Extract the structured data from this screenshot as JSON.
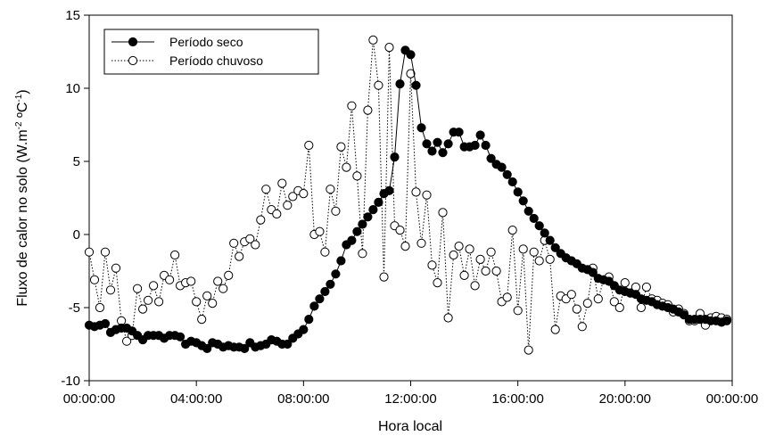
{
  "chart_data": {
    "type": "line",
    "title": "",
    "xlabel": "Hora local",
    "ylabel_main": "Fluxo de calor no solo (W.m",
    "ylabel_sup1": "-2",
    "ylabel_mid": " ºC",
    "ylabel_sup2": "-1",
    "ylabel_end": ")",
    "xlim": [
      0,
      24
    ],
    "ylim": [
      -10,
      15
    ],
    "xticks": [
      0,
      4,
      8,
      12,
      16,
      20,
      24
    ],
    "xtick_labels": [
      "00:00:00",
      "04:00:00",
      "08:00:00",
      "12:00:00",
      "16:00:00",
      "20:00:00",
      "00:00:00"
    ],
    "yticks": [
      -10,
      -5,
      0,
      5,
      10,
      15
    ],
    "ytick_labels": [
      "-10",
      "-5",
      "0",
      "5",
      "10",
      "15"
    ],
    "grid": false,
    "legend_position": "top-left",
    "series": [
      {
        "name": "Período seco",
        "marker": "filled-circle",
        "line": "solid",
        "color": "#000000",
        "x": [
          0.0,
          0.2,
          0.4,
          0.6,
          0.8,
          1.0,
          1.2,
          1.4,
          1.6,
          1.8,
          2.0,
          2.2,
          2.4,
          2.6,
          2.8,
          3.0,
          3.2,
          3.4,
          3.6,
          3.8,
          4.0,
          4.2,
          4.4,
          4.6,
          4.8,
          5.0,
          5.2,
          5.4,
          5.6,
          5.8,
          6.0,
          6.2,
          6.4,
          6.6,
          6.8,
          7.0,
          7.2,
          7.4,
          7.6,
          7.8,
          8.0,
          8.2,
          8.4,
          8.6,
          8.8,
          9.0,
          9.2,
          9.4,
          9.6,
          9.8,
          10.0,
          10.2,
          10.4,
          10.6,
          10.8,
          11.0,
          11.2,
          11.4,
          11.6,
          11.8,
          12.0,
          12.2,
          12.4,
          12.6,
          12.8,
          13.0,
          13.2,
          13.4,
          13.6,
          13.8,
          14.0,
          14.2,
          14.4,
          14.6,
          14.8,
          15.0,
          15.2,
          15.4,
          15.6,
          15.8,
          16.0,
          16.2,
          16.4,
          16.6,
          16.8,
          17.0,
          17.2,
          17.4,
          17.6,
          17.8,
          18.0,
          18.2,
          18.4,
          18.6,
          18.8,
          19.0,
          19.2,
          19.4,
          19.6,
          19.8,
          20.0,
          20.2,
          20.4,
          20.6,
          20.8,
          21.0,
          21.2,
          21.4,
          21.6,
          21.8,
          22.0,
          22.2,
          22.4,
          22.6,
          22.8,
          23.0,
          23.2,
          23.4,
          23.6,
          23.8
        ],
        "y": [
          -6.2,
          -6.3,
          -6.2,
          -6.1,
          -6.7,
          -6.5,
          -6.4,
          -6.4,
          -6.6,
          -6.9,
          -7.2,
          -6.9,
          -6.9,
          -6.9,
          -7.1,
          -6.9,
          -6.9,
          -7.0,
          -7.5,
          -7.3,
          -7.4,
          -7.6,
          -7.8,
          -7.4,
          -7.5,
          -7.7,
          -7.6,
          -7.7,
          -7.7,
          -7.8,
          -7.4,
          -7.7,
          -7.6,
          -7.5,
          -7.2,
          -7.3,
          -7.5,
          -7.5,
          -7.1,
          -6.8,
          -6.5,
          -5.8,
          -4.9,
          -4.4,
          -3.9,
          -3.4,
          -2.7,
          -1.8,
          -0.7,
          -0.4,
          0.2,
          0.7,
          1.2,
          1.7,
          2.2,
          2.8,
          3.0,
          5.3,
          10.3,
          12.6,
          12.3,
          10.2,
          7.3,
          6.2,
          5.7,
          6.3,
          5.6,
          6.2,
          7.0,
          7.0,
          6.0,
          6.0,
          6.1,
          6.8,
          6.1,
          5.2,
          4.8,
          4.6,
          4.1,
          3.6,
          2.9,
          2.3,
          1.6,
          1.1,
          0.6,
          0.1,
          -0.4,
          -0.9,
          -1.3,
          -1.6,
          -1.8,
          -2.0,
          -2.3,
          -2.4,
          -2.6,
          -3.0,
          -3.1,
          -3.2,
          -3.5,
          -3.8,
          -3.9,
          -4.0,
          -4.1,
          -4.4,
          -4.5,
          -4.6,
          -4.8,
          -4.9,
          -5.0,
          -5.1,
          -5.3,
          -5.5,
          -5.8,
          -5.8,
          -5.8,
          -5.8,
          -5.9,
          -5.9,
          -6.0,
          -5.9
        ]
      },
      {
        "name": "Período chuvoso",
        "marker": "open-circle",
        "line": "dotted",
        "color": "#000000",
        "x": [
          0.0,
          0.2,
          0.4,
          0.6,
          0.8,
          1.0,
          1.2,
          1.4,
          1.6,
          1.8,
          2.0,
          2.2,
          2.4,
          2.6,
          2.8,
          3.0,
          3.2,
          3.4,
          3.6,
          3.8,
          4.0,
          4.2,
          4.4,
          4.6,
          4.8,
          5.0,
          5.2,
          5.4,
          5.6,
          5.8,
          6.0,
          6.2,
          6.4,
          6.6,
          6.8,
          7.0,
          7.2,
          7.4,
          7.6,
          7.8,
          8.0,
          8.2,
          8.4,
          8.6,
          8.8,
          9.0,
          9.2,
          9.4,
          9.6,
          9.8,
          10.0,
          10.2,
          10.4,
          10.6,
          10.8,
          11.0,
          11.2,
          11.4,
          11.6,
          11.8,
          12.0,
          12.2,
          12.4,
          12.6,
          12.8,
          13.0,
          13.2,
          13.4,
          13.6,
          13.8,
          14.0,
          14.2,
          14.4,
          14.6,
          14.8,
          15.0,
          15.2,
          15.4,
          15.6,
          15.8,
          16.0,
          16.2,
          16.4,
          16.6,
          16.8,
          17.0,
          17.2,
          17.4,
          17.6,
          17.8,
          18.0,
          18.2,
          18.4,
          18.6,
          18.8,
          19.0,
          19.2,
          19.4,
          19.6,
          19.8,
          20.0,
          20.2,
          20.4,
          20.6,
          20.8,
          21.0,
          21.2,
          21.4,
          21.6,
          21.8,
          22.0,
          22.2,
          22.4,
          22.6,
          22.8,
          23.0,
          23.2,
          23.4,
          23.6,
          23.8
        ],
        "y": [
          -1.2,
          -3.1,
          -5.0,
          -1.2,
          -3.8,
          -2.3,
          -5.9,
          -7.3,
          -6.9,
          -3.7,
          -5.1,
          -4.5,
          -3.5,
          -4.6,
          -2.8,
          -3.1,
          -1.4,
          -3.5,
          -3.3,
          -3.2,
          -4.6,
          -5.8,
          -4.2,
          -4.7,
          -3.2,
          -3.7,
          -2.8,
          -0.6,
          -1.5,
          -0.5,
          -0.3,
          -0.7,
          1.0,
          3.1,
          1.7,
          1.4,
          3.5,
          2.0,
          2.6,
          3.0,
          2.8,
          6.1,
          0.0,
          0.2,
          -1.2,
          3.1,
          1.6,
          6.0,
          4.6,
          8.8,
          4.0,
          -1.3,
          8.5,
          13.3,
          10.2,
          -2.9,
          12.8,
          0.6,
          0.3,
          -0.8,
          11.0,
          2.9,
          -0.6,
          2.7,
          -2.1,
          -3.3,
          1.5,
          -5.7,
          -1.4,
          -0.8,
          -2.8,
          -1.0,
          -3.5,
          -1.7,
          -2.5,
          -1.2,
          -2.5,
          -4.6,
          -4.3,
          0.3,
          -5.2,
          -1.0,
          -7.9,
          -1.2,
          -1.8,
          -0.4,
          -1.7,
          -6.5,
          -4.2,
          -4.4,
          -4.1,
          -5.1,
          -6.3,
          -4.7,
          -2.3,
          -4.4,
          -3.1,
          -2.9,
          -4.6,
          -5.0,
          -3.3,
          -4.0,
          -3.6,
          -5.0,
          -3.6,
          -4.4,
          -4.5,
          -4.7,
          -4.8,
          -5.3,
          -5.1,
          -5.4,
          -5.9,
          -5.9,
          -5.4,
          -6.2,
          -5.7,
          -5.6,
          -5.7,
          -5.8
        ]
      }
    ]
  }
}
